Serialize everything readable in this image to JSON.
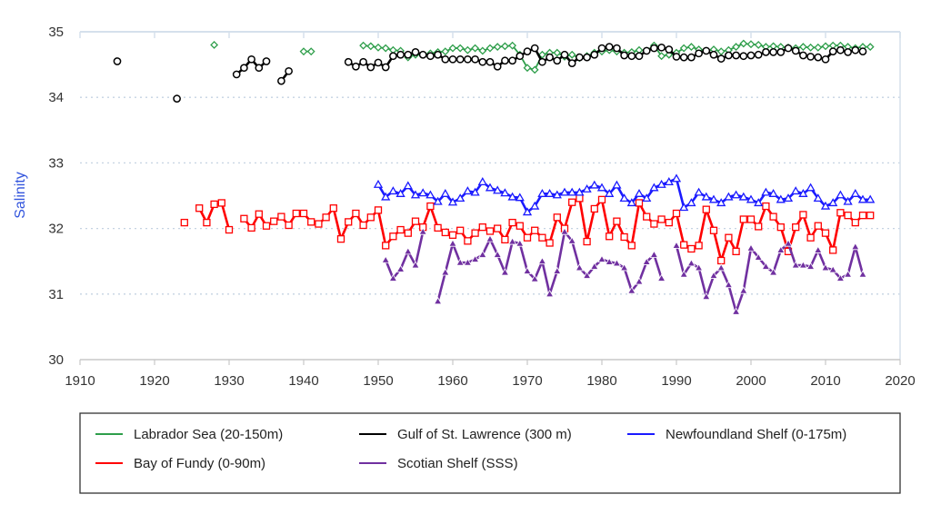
{
  "chart_data": {
    "type": "line",
    "title": "",
    "xlabel": "",
    "ylabel": "Salinity",
    "xlim": [
      1910,
      2020
    ],
    "ylim": [
      30,
      35
    ],
    "xticks": [
      "1910",
      "1920",
      "1930",
      "1940",
      "1950",
      "1960",
      "1970",
      "1980",
      "1990",
      "2000",
      "2010",
      "2020"
    ],
    "yticks": [
      "30",
      "31",
      "32",
      "33",
      "34",
      "35"
    ],
    "grid": "horizontal dotted",
    "legend_position": "bottom",
    "ylabel_color": "#3355dd",
    "series": [
      {
        "name": "Labrador Sea (20-150m)",
        "color": "#2e9e4a",
        "marker": "diamond-open",
        "segments": [
          {
            "start": 1928,
            "values": [
              34.8
            ]
          },
          {
            "start": 1940,
            "values": [
              34.7,
              34.7
            ]
          },
          {
            "start": 1948,
            "values": [
              34.79,
              34.78,
              34.76,
              34.75,
              34.72,
              34.71,
              34.61,
              34.65,
              34.65,
              34.67,
              34.69,
              34.7,
              34.75,
              34.75,
              34.72,
              34.75,
              34.71,
              34.75,
              34.77,
              34.78,
              34.79,
              34.65,
              34.45,
              34.42,
              34.65,
              34.68,
              34.68,
              34.62,
              34.65,
              34.6,
              34.63,
              34.68,
              34.7,
              34.72,
              34.7,
              34.68,
              34.69,
              34.72,
              34.71,
              34.79,
              34.63,
              34.65,
              34.68,
              34.75,
              34.77,
              34.73,
              34.71,
              34.73,
              34.7,
              34.72,
              34.77,
              34.82,
              34.81,
              34.8,
              34.77,
              34.78,
              34.77,
              34.76,
              34.75,
              34.77,
              34.76,
              34.76,
              34.78,
              34.79,
              34.79,
              34.77,
              34.75,
              34.77,
              34.77
            ]
          }
        ]
      },
      {
        "name": "Gulf of St. Lawrence (300 m)",
        "color": "#000000",
        "marker": "circle-open",
        "segments": [
          {
            "start": 1915,
            "values": [
              34.55
            ]
          },
          {
            "start": 1923,
            "values": [
              33.98
            ]
          },
          {
            "start": 1931,
            "values": [
              34.35,
              34.45,
              34.58,
              34.45,
              34.55
            ]
          },
          {
            "start": 1937,
            "values": [
              34.25,
              34.4
            ]
          },
          {
            "start": 1946,
            "values": [
              34.54,
              34.47,
              34.54,
              34.46,
              34.53,
              34.46,
              34.63,
              34.65,
              34.65,
              34.69,
              34.65,
              34.63,
              34.65,
              34.58,
              34.58,
              34.58,
              34.58,
              34.58,
              34.54,
              34.54,
              34.47,
              34.56,
              34.56,
              34.63,
              34.7,
              34.75,
              34.54,
              34.61,
              34.56,
              34.65,
              34.52,
              34.61,
              34.61,
              34.65,
              34.75,
              34.77,
              34.75,
              34.64,
              34.63,
              34.63,
              34.71,
              34.75,
              34.76,
              34.73,
              34.62,
              34.61,
              34.61,
              34.67,
              34.71,
              34.65,
              34.59,
              34.64,
              34.64,
              34.63,
              34.64,
              34.65,
              34.69,
              34.69,
              34.69,
              34.75,
              34.71,
              34.64,
              34.62,
              34.61,
              34.58,
              34.7,
              34.72,
              34.69,
              34.72,
              34.7
            ]
          }
        ]
      },
      {
        "name": "Newfoundland Shelf (0-175m)",
        "color": "#1a1aff",
        "marker": "triangle-open",
        "segments": [
          {
            "start": 1950,
            "values": [
              32.67,
              32.48,
              32.57,
              32.53,
              32.65,
              32.51,
              32.54,
              32.51,
              32.41,
              32.53,
              32.4,
              32.46,
              32.57,
              32.55,
              32.71,
              32.62,
              32.58,
              32.54,
              32.48,
              32.47,
              32.25,
              32.34,
              32.53,
              32.53,
              32.51,
              32.55,
              32.55,
              32.55,
              32.6,
              32.66,
              32.62,
              32.53,
              32.66,
              32.46,
              32.39,
              32.53,
              32.46,
              32.62,
              32.67,
              32.71,
              32.76,
              32.32,
              32.39,
              32.55,
              32.48,
              32.44,
              32.39,
              32.48,
              32.51,
              32.48,
              32.44,
              32.39,
              32.55,
              32.53,
              32.44,
              32.46,
              32.57,
              32.53,
              32.62,
              32.46,
              32.34,
              32.39,
              32.51,
              32.41,
              32.53,
              32.44,
              32.44
            ]
          }
        ]
      },
      {
        "name": "Bay of Fundy (0-90m)",
        "color": "#ff0000",
        "marker": "square-open",
        "segments": [
          {
            "start": 1924,
            "values": [
              32.09
            ]
          },
          {
            "start": 1926,
            "values": [
              32.31,
              32.09,
              32.37,
              32.39,
              31.98
            ]
          },
          {
            "start": 1932,
            "values": [
              32.15,
              32.01,
              32.22,
              32.04,
              32.11,
              32.18,
              32.05,
              32.23,
              32.23,
              32.1,
              32.07,
              32.17,
              32.31,
              31.84,
              32.1,
              32.23,
              32.05,
              32.17,
              32.28,
              31.74,
              31.88,
              31.98,
              31.93,
              32.11,
              32.02,
              32.34,
              32.01,
              31.94,
              31.9,
              31.97,
              31.81,
              31.93,
              32.02,
              31.96,
              32.0,
              31.83,
              32.09,
              32.04,
              31.86,
              31.97,
              31.86,
              31.78,
              32.17,
              32.0,
              32.4,
              32.46,
              31.8,
              32.3,
              32.44,
              31.88,
              32.11,
              31.87,
              31.74,
              32.39,
              32.18,
              32.07,
              32.14,
              32.09,
              32.23,
              31.75,
              31.69,
              31.74,
              32.29,
              31.97,
              31.51,
              31.86,
              31.65,
              32.14,
              32.14,
              32.03,
              32.34,
              32.18,
              32.02,
              31.65,
              32.02,
              32.21,
              31.86,
              32.04,
              31.93,
              31.67,
              32.24,
              32.2,
              32.09,
              32.2,
              32.2
            ]
          }
        ]
      },
      {
        "name": "Scotian Shelf (SSS)",
        "color": "#7030a0",
        "marker": "triangle-filled",
        "segments": [
          {
            "start": 1951,
            "values": [
              31.52,
              31.24,
              31.38,
              31.65,
              31.44,
              31.95
            ]
          },
          {
            "start": 1958,
            "values": [
              30.89,
              31.33,
              31.77,
              31.48,
              31.48,
              31.53,
              31.6,
              31.84,
              31.6,
              31.33,
              31.8,
              31.77,
              31.35,
              31.23,
              31.5,
              31.0,
              31.35,
              31.95,
              31.81,
              31.4,
              31.28,
              31.42,
              31.53,
              31.49,
              31.47,
              31.4,
              31.05,
              31.19,
              31.49,
              31.6,
              31.24
            ]
          },
          {
            "start": 1990,
            "values": [
              31.74,
              31.3,
              31.47,
              31.4,
              30.96,
              31.28,
              31.4,
              31.14,
              30.73,
              31.05,
              31.7,
              31.56,
              31.42,
              31.33,
              31.67,
              31.77,
              31.44,
              31.44,
              31.42,
              31.67,
              31.4,
              31.37,
              31.24,
              31.3,
              31.72,
              31.3
            ]
          }
        ]
      }
    ]
  }
}
